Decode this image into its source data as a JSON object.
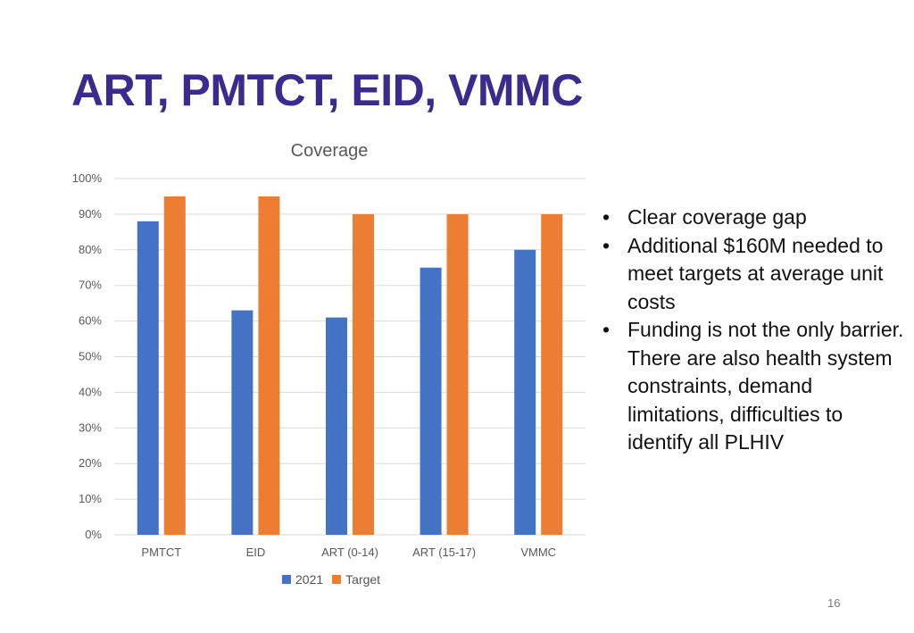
{
  "slide": {
    "title": "ART, PMTCT, EID, VMMC",
    "page_number": "16"
  },
  "bullets": [
    "Clear coverage gap",
    "Additional $160M needed to meet targets at average unit costs",
    "Funding is not the only barrier. There are also health system constraints, demand limitations, difficulties to identify all PLHIV"
  ],
  "bullet_symbol": "•",
  "chart_data": {
    "type": "bar",
    "title": "Coverage",
    "categories": [
      "PMTCT",
      "EID",
      "ART (0-14)",
      "ART (15-17)",
      "VMMC"
    ],
    "series": [
      {
        "name": "2021",
        "values": [
          88,
          63,
          61,
          75,
          80
        ],
        "color": "#4472c4"
      },
      {
        "name": "Target",
        "values": [
          95,
          95,
          90,
          90,
          90
        ],
        "color": "#ed7d31"
      }
    ],
    "yticks": [
      "0%",
      "10%",
      "20%",
      "30%",
      "40%",
      "50%",
      "60%",
      "70%",
      "80%",
      "90%",
      "100%"
    ],
    "ylim": [
      0,
      100
    ],
    "xlabel": "",
    "ylabel": "",
    "grid": true,
    "legend_position": "bottom"
  }
}
